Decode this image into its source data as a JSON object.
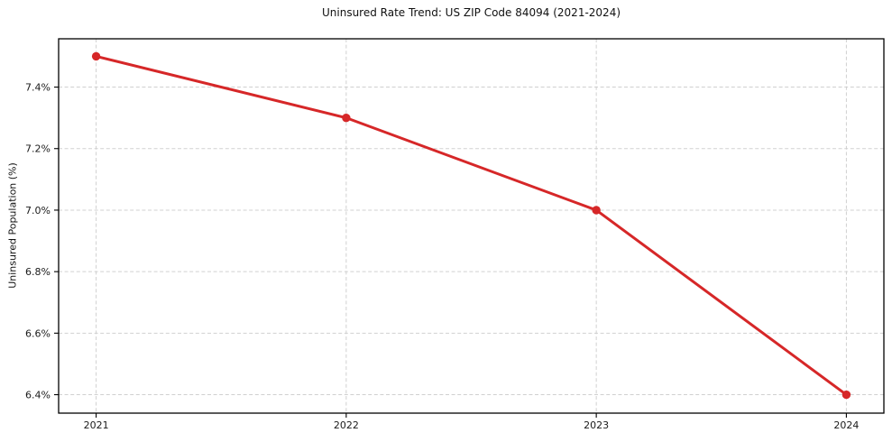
{
  "chart_data": {
    "type": "line",
    "title": "Uninsured Rate Trend: US ZIP Code 84094 (2021-2024)",
    "xlabel": "",
    "ylabel": "Uninsured Population (%)",
    "x": [
      2021,
      2022,
      2023,
      2024
    ],
    "series": [
      {
        "name": "Uninsured rate",
        "values": [
          7.5,
          7.3,
          7.0,
          6.4
        ],
        "color": "#d62728",
        "line_width": 3,
        "marker": "circle",
        "marker_radius": 4.7
      }
    ],
    "xticks": [
      2021,
      2022,
      2023,
      2024
    ],
    "xtick_labels": [
      "2021",
      "2022",
      "2023",
      "2024"
    ],
    "yticks": [
      6.4,
      6.6,
      6.8,
      7.0,
      7.2,
      7.4
    ],
    "ytick_labels": [
      "6.4%",
      "6.6%",
      "6.8%",
      "7.0%",
      "7.2%",
      "7.4%"
    ],
    "xlim": [
      2020.85,
      2024.15
    ],
    "ylim": [
      6.34,
      7.557
    ],
    "grid": true,
    "grid_color": "#cccccc",
    "background_color": "#ffffff",
    "spine_color": "#000000",
    "legend": null
  }
}
